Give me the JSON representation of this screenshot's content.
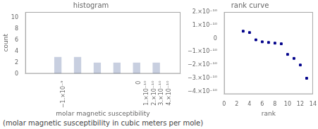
{
  "chart_data": [
    {
      "type": "histogram",
      "title": "histogram",
      "x_label": "molar magnetic susceptibility",
      "y_label": "count",
      "bins": [
        -1.2e-09,
        -9.4e-10,
        -6.8e-10,
        -4.2e-10,
        -1.6e-10,
        1e-10,
        3.6e-10
      ],
      "values": [
        3,
        3,
        2,
        2,
        2,
        2
      ],
      "color": "#c8cfe0",
      "xlim": [
        -1.5e-09,
        5.5e-10
      ],
      "ylim": [
        0,
        11
      ],
      "xticks": [
        {
          "value": -1e-09,
          "label": "−1.×10⁻⁹"
        },
        0,
        {
          "value": 1e-10,
          "label": "1.×10⁻¹⁰"
        },
        {
          "value": 2e-10,
          "label": "2.×10⁻¹⁰"
        },
        {
          "value": 3e-10,
          "label": "3.×10⁻¹⁰"
        },
        {
          "value": 4e-10,
          "label": "4.×10⁻¹⁰"
        }
      ],
      "yticks": [
        0,
        2,
        4,
        6,
        8,
        10
      ],
      "grid": false,
      "annotations": [
        "(molar magnetic susceptibility in cubic meters per mole)"
      ]
    },
    {
      "type": "scatter",
      "title": "rank curve",
      "x_label": "rank",
      "x": [
        3,
        4,
        5,
        6,
        7,
        8,
        9,
        10,
        11,
        12,
        13
      ],
      "values": [
        5.5e-11,
        4.5e-11,
        -1e-11,
        -2.5e-11,
        -3e-11,
        -3.5e-11,
        -4e-11,
        -1.2e-10,
        -1.5e-10,
        -2e-10,
        -3e-10
      ],
      "color": "#00008b",
      "marker": "square",
      "xlim": [
        0,
        14
      ],
      "ylim": [
        -4.2e-10,
        2e-10
      ],
      "xticks": [
        0,
        2,
        4,
        6,
        8,
        10,
        12,
        14
      ],
      "yticks": [
        {
          "value": 2e-10,
          "label": "2.×10⁻¹⁰"
        },
        {
          "value": 1e-10,
          "label": "1.×10⁻¹⁰"
        },
        0,
        {
          "value": -1e-10,
          "label": "−1.×10⁻¹⁰"
        },
        {
          "value": -2e-10,
          "label": "−2.×10⁻¹⁰"
        },
        {
          "value": -3e-10,
          "label": "−3.×10⁻¹⁰"
        },
        {
          "value": -4e-10,
          "label": "−4.×10⁻¹⁰"
        }
      ],
      "grid": false
    }
  ]
}
